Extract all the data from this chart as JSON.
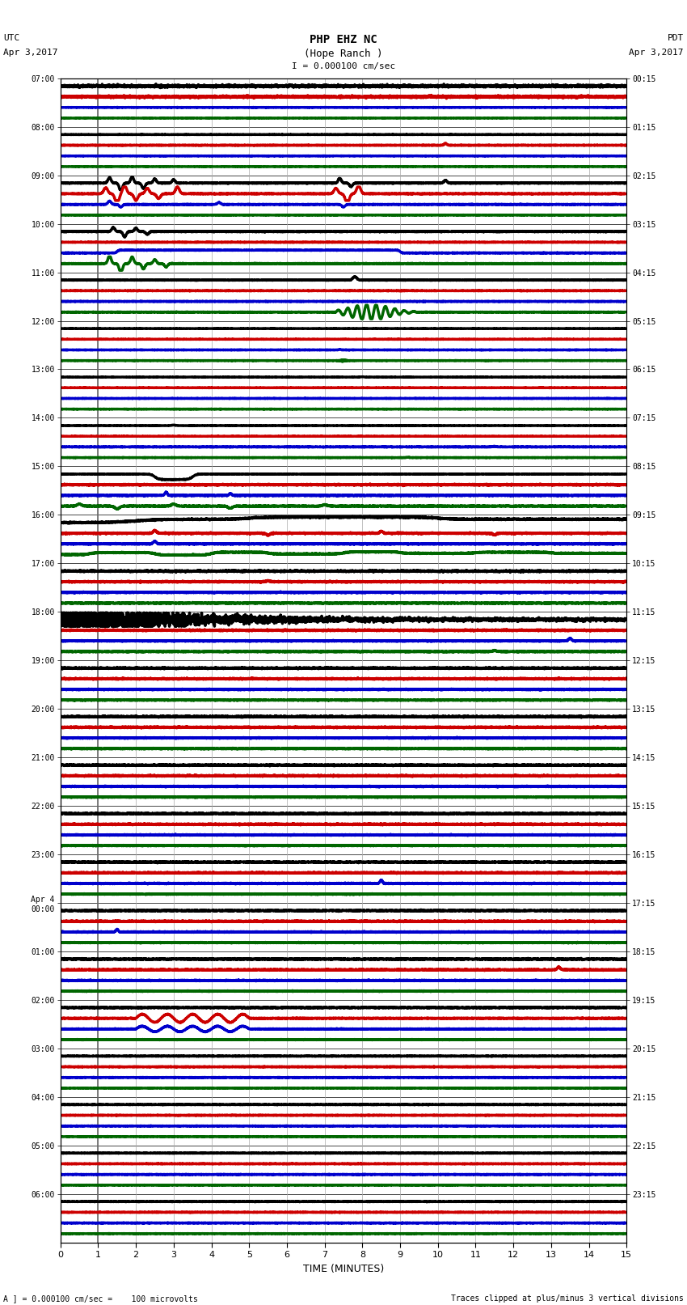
{
  "title_line1": "PHP EHZ NC",
  "title_line2": "(Hope Ranch )",
  "title_line3": "I = 0.000100 cm/sec",
  "left_header_line1": "UTC",
  "left_header_line2": "Apr 3,2017",
  "right_header_line1": "PDT",
  "right_header_line2": "Apr 3,2017",
  "xlabel": "TIME (MINUTES)",
  "footer_left": "A ] = 0.000100 cm/sec =    100 microvolts",
  "footer_right": "Traces clipped at plus/minus 3 vertical divisions",
  "xlim": [
    0,
    15
  ],
  "xticks": [
    0,
    1,
    2,
    3,
    4,
    5,
    6,
    7,
    8,
    9,
    10,
    11,
    12,
    13,
    14,
    15
  ],
  "n_rows": 24,
  "background_color": "#ffffff",
  "grid_color": "#aaaaaa",
  "colors": [
    "#000000",
    "#cc0000",
    "#0000cc",
    "#006600"
  ],
  "left_labels_utc": [
    "07:00",
    "08:00",
    "09:00",
    "10:00",
    "11:00",
    "12:00",
    "13:00",
    "14:00",
    "15:00",
    "16:00",
    "17:00",
    "18:00",
    "19:00",
    "20:00",
    "21:00",
    "22:00",
    "23:00",
    "Apr 4\n00:00",
    "01:00",
    "02:00",
    "03:00",
    "04:00",
    "05:00",
    "06:00"
  ],
  "right_labels_pdt": [
    "00:15",
    "01:15",
    "02:15",
    "03:15",
    "04:15",
    "05:15",
    "06:15",
    "07:15",
    "08:15",
    "09:15",
    "10:15",
    "11:15",
    "12:15",
    "13:15",
    "14:15",
    "15:15",
    "16:15",
    "17:15",
    "18:15",
    "19:15",
    "20:15",
    "21:15",
    "22:15",
    "23:15"
  ]
}
